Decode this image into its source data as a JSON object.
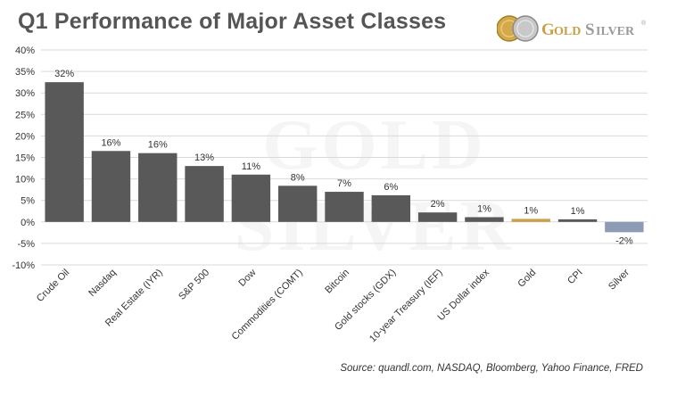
{
  "title": "Q1 Performance of Major Asset Classes",
  "logo": {
    "text": "GoldSilver",
    "part1": "G",
    "part2": "OLD",
    "part3": "S",
    "part4": "ILVER",
    "mark": "®"
  },
  "watermark": "GOLD SILVER",
  "source": "Source: quandl.com, NASDAQ, Bloomberg, Yahoo Finance, FRED",
  "colors": {
    "bar": "#595959",
    "gold": "#c9a045",
    "silver": "#8e9bb5",
    "grid": "#d9d9d9",
    "text": "#333333",
    "title": "#555555"
  },
  "chart_data": {
    "type": "bar",
    "title": "Q1 Performance of Major Asset Classes",
    "xlabel": "",
    "ylabel": "",
    "ylim": [
      -10,
      40
    ],
    "yticks": [
      -10,
      -5,
      0,
      5,
      10,
      15,
      20,
      25,
      30,
      35,
      40
    ],
    "ytick_labels": [
      "-10%",
      "-5%",
      "0%",
      "5%",
      "10%",
      "15%",
      "20%",
      "25%",
      "30%",
      "35%",
      "40%"
    ],
    "grid": true,
    "legend": "none",
    "categories": [
      "Crude Oil",
      "Nasdaq",
      "Real Estate (IYR)",
      "S&P 500",
      "Dow",
      "Commodities (COMT)",
      "Bitcoin",
      "Gold stocks (GDX)",
      "10-year Treasury (IEF)",
      "US Dollar index",
      "Gold",
      "CPI",
      "Silver"
    ],
    "values": [
      32.5,
      16.5,
      16,
      13,
      11,
      8.4,
      7,
      6.2,
      2.2,
      1.1,
      0.7,
      0.6,
      -2.4
    ],
    "data_labels": [
      "32%",
      "16%",
      "16%",
      "13%",
      "11%",
      "8%",
      "7%",
      "6%",
      "2%",
      "1%",
      "1%",
      "1%",
      "-2%"
    ],
    "bar_colors": [
      "#595959",
      "#595959",
      "#595959",
      "#595959",
      "#595959",
      "#595959",
      "#595959",
      "#595959",
      "#595959",
      "#595959",
      "#c9a045",
      "#595959",
      "#8e9bb5"
    ]
  }
}
